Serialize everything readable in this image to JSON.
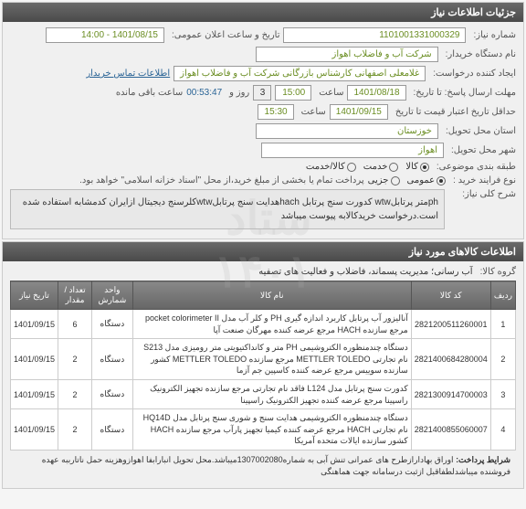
{
  "header": {
    "title": "جزئیات اطلاعات نیاز"
  },
  "info": {
    "need_no_label": "شماره نیاز:",
    "need_no": "1101001331000329",
    "announce_label": "تاریخ و ساعت اعلان عمومی:",
    "announce": "1401/08/15 - 14:00",
    "org_label": "نام دستگاه خریدار:",
    "org": "شرکت آب و فاضلاب اهواز",
    "creator_label": "ایجاد کننده درخواست:",
    "creator": "غلامعلی اصفهانی کارشناس بازرگانی شرکت آب و فاضلاب اهواز",
    "contact_link": "اطلاعات تماس خریدار",
    "deadline_label": "مهلت ارسال پاسخ: تا تاریخ:",
    "deadline_date": "1401/08/18",
    "deadline_time_label": "ساعت",
    "deadline_time": "15:00",
    "days_label": "روز و",
    "days": "3",
    "timer": "00:53:47",
    "timer_label": "ساعت باقی مانده",
    "credit_label": "حداقل تاریخ اعتبار قیمت تا تاریخ",
    "credit_date": "1401/09/15",
    "credit_time": "15:30",
    "province_label": "استان محل تحویل:",
    "province": "خوزستان",
    "city_label": "شهر محل تحویل:",
    "city": "اهواز",
    "topic_label": "طبقه بندی موضوعی:",
    "topic_goods": "کالا",
    "topic_service": "خدمت",
    "topic_both": "کالا/خدمت",
    "buy_type_label": "نوع فرایند خرید :",
    "buy_full": "عمومی",
    "buy_partial": "جزیی",
    "buy_note": "پرداخت تمام یا بخشی از مبلغ خرید،از محل \"اسناد خزانه اسلامی\" خواهد بود."
  },
  "summary": {
    "label": "شرح کلی نیاز:",
    "text": "phمتر پرتابلwtw  کدورت سنج پرتابل hachهدایت سنج پرتابلwtwکلرسنج دیجیتال ازایران کدمشابه استفاده شده است.درخواست خریدکالابه پیوست میباشد"
  },
  "goods_header": "اطلاعات کالاهای مورد نیاز",
  "group": {
    "label": "گروه کالا:",
    "text": "آب رسانی؛ مدیریت پسماند، فاضلاب و فعالیت های تصفیه"
  },
  "table": {
    "cols": [
      "ردیف",
      "کد کالا",
      "نام کالا",
      "واحد شمارش",
      "تعداد / مقدار",
      "تاریخ نیاز"
    ],
    "rows": [
      {
        "n": "1",
        "code": "2821200511260001",
        "name": "آنالیزور آب پرتابل کاربرد اندازه گیری PH و کلر آب مدل pocket colorimeter II مرجع سازنده HACH مرجع عرضه کننده مهرگان صنعت آپا",
        "unit": "دستگاه",
        "qty": "6",
        "date": "1401/09/15"
      },
      {
        "n": "2",
        "code": "2821400684280004",
        "name": "دستگاه چندمنظوره الکتروشیمی PH متر و کانداکتیویتی متر رومیزی مدل S213 نام تجارتی METTLER TOLEDO مرجع سازنده METTLER TOLEDO کشور سازنده سوییس مرجع عرضه کننده کاسپین جم آزما",
        "unit": "دستگاه",
        "qty": "2",
        "date": "1401/09/15"
      },
      {
        "n": "3",
        "code": "2821300914700003",
        "name": "کدورت سنج پرتابل مدل L124 فاقد نام تجارتی مرجع سازنده تجهیز الکترونیک راسپینا مرجع عرضه کننده تجهیز الکترونیک راسپینا",
        "unit": "دستگاه",
        "qty": "2",
        "date": "1401/09/15"
      },
      {
        "n": "4",
        "code": "2821400855060007",
        "name": "دستگاه چندمنظوره الکتروشیمی هدایت سنج و شوری سنج پرتابل مدل HQ14D نام تجارتی HACH مرجع عرضه کننده کیمیا تجهیز پارآب مرجع سازنده HACH کشور سازنده ایالات متحده آمریکا",
        "unit": "دستگاه",
        "qty": "2",
        "date": "1401/09/15"
      }
    ]
  },
  "footer": {
    "label": "شرایط پرداخت:",
    "text": "اوراق بهادارازطرح های عمرانی تنش آبی به شماره1307002080میباشد.محل تحویل انبارابفا اهوازوهزینه حمل ناتارببه عهده فروشنده میباشدلطفاقبل ازثبت درسامانه جهت هماهنگی"
  },
  "watermark": "ستاد\n1401"
}
